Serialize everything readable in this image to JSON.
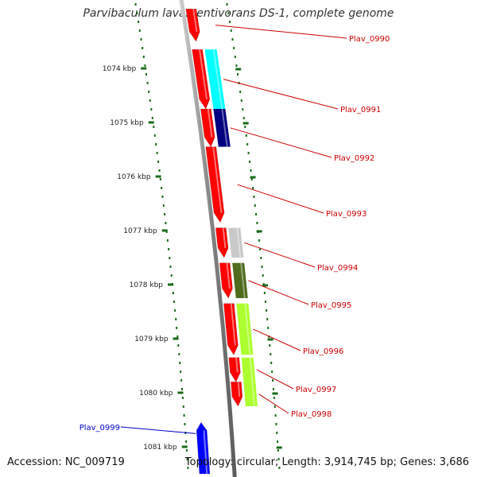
{
  "title": "Parvibaculum lavamentivorans DS-1, complete genome",
  "footer": {
    "accession": "Accession: NC_009719",
    "topology": "Topology: circular; Length: 3,914,745 bp; Genes: 3,686"
  },
  "colors": {
    "backbone": "#888888",
    "tick_mark": "#1a6b1a",
    "tick_label": "#222222",
    "gene_label": "#cc0000",
    "reverse_label": "#0000cc"
  },
  "scale_ticks": [
    {
      "label": "1074 kbp",
      "pos_kbp": 1074
    },
    {
      "label": "1075 kbp",
      "pos_kbp": 1075
    },
    {
      "label": "1076 kbp",
      "pos_kbp": 1076
    },
    {
      "label": "1077 kbp",
      "pos_kbp": 1077
    },
    {
      "label": "1078 kbp",
      "pos_kbp": 1078
    },
    {
      "label": "1079 kbp",
      "pos_kbp": 1079
    },
    {
      "label": "1080 kbp",
      "pos_kbp": 1080
    },
    {
      "label": "1081 kbp",
      "pos_kbp": 1081
    }
  ],
  "genes": [
    {
      "label": "Plav_0990",
      "start_kbp": 1072.9,
      "end_kbp": 1073.5,
      "strand": "+",
      "cog_color": "#ff9999"
    },
    {
      "label": "Plav_0991",
      "start_kbp": 1073.65,
      "end_kbp": 1074.75,
      "strand": "+",
      "cog_color": "#00ffff"
    },
    {
      "label": "Plav_0992",
      "start_kbp": 1074.75,
      "end_kbp": 1075.45,
      "strand": "+",
      "cog_color": "#000080"
    },
    {
      "label": "Plav_0993",
      "start_kbp": 1075.45,
      "end_kbp": 1076.85,
      "strand": "+",
      "cog_color": "#ff0000"
    },
    {
      "label": "Plav_0994",
      "start_kbp": 1076.95,
      "end_kbp": 1077.5,
      "strand": "+",
      "cog_color": "#c8c8c8"
    },
    {
      "label": "Plav_0995",
      "start_kbp": 1077.6,
      "end_kbp": 1078.25,
      "strand": "+",
      "cog_color": "#4f6b1e"
    },
    {
      "label": "Plav_0996",
      "start_kbp": 1078.35,
      "end_kbp": 1079.3,
      "strand": "+",
      "cog_color": "#adff2f"
    },
    {
      "label": "Plav_0997",
      "start_kbp": 1079.35,
      "end_kbp": 1079.8,
      "strand": "+",
      "cog_color": "#adff2f"
    },
    {
      "label": "Plav_0998",
      "start_kbp": 1079.8,
      "end_kbp": 1080.25,
      "strand": "+",
      "cog_color": "#adff2f"
    },
    {
      "label": "Plav_0999",
      "start_kbp": 1080.55,
      "end_kbp": 1081.5,
      "strand": "-",
      "cog_color": "#0000ff"
    }
  ]
}
